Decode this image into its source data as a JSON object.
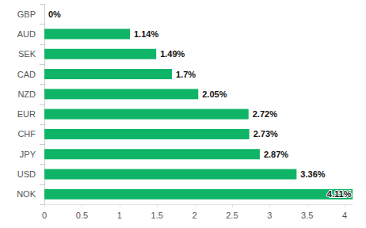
{
  "chart_data": {
    "type": "bar",
    "orientation": "horizontal",
    "categories": [
      "GBP",
      "AUD",
      "SEK",
      "CAD",
      "NZD",
      "EUR",
      "CHF",
      "JPY",
      "USD",
      "NOK"
    ],
    "values": [
      0,
      1.14,
      1.49,
      1.7,
      2.05,
      2.72,
      2.73,
      2.87,
      3.36,
      4.11
    ],
    "value_labels": [
      "0%",
      "1.14%",
      "1.49%",
      "1.7%",
      "2.05%",
      "2.72%",
      "2.73%",
      "2.87%",
      "3.36%",
      "4.11%"
    ],
    "color": "#0fb466",
    "xlim": [
      0,
      4.11
    ],
    "xticks": [
      0,
      0.5,
      1,
      1.5,
      2,
      2.5,
      3,
      3.5,
      4
    ],
    "data_labels": true,
    "grid": false
  }
}
